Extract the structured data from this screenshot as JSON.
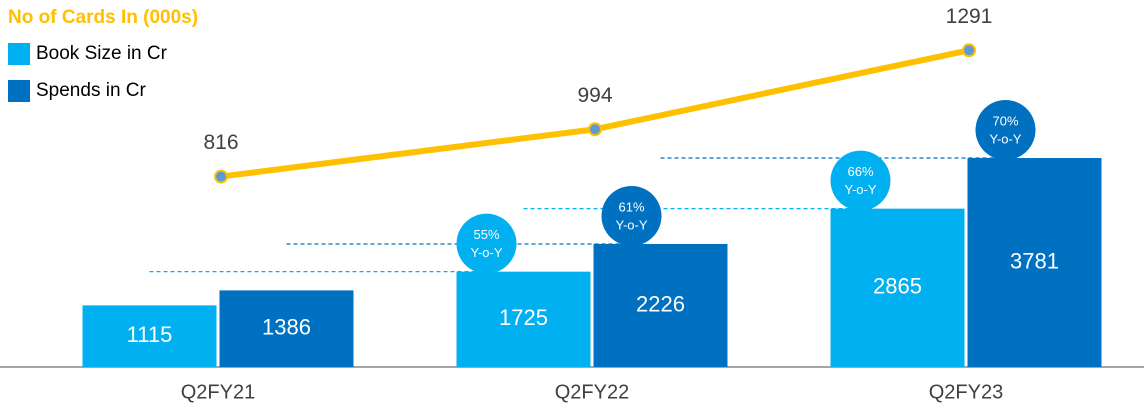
{
  "chart_data": {
    "type": "bar",
    "categories": [
      "Q2FY21",
      "Q2FY22",
      "Q2FY23"
    ],
    "ylim": [
      0,
      6640
    ],
    "y2lim": [
      100,
      1480
    ],
    "series": [
      {
        "name": "Book Size in Cr",
        "color": "#00b0f0",
        "values": [
          1115,
          1725,
          2865
        ],
        "growth_labels": [
          null,
          "55%",
          "66%"
        ]
      },
      {
        "name": "Spends in Cr",
        "color": "#0070c0",
        "values": [
          1386,
          2226,
          3781
        ],
        "growth_labels": [
          null,
          "61%",
          "70%"
        ]
      },
      {
        "name": "No of Cards In (000s)",
        "type": "line",
        "axis": "y2",
        "color": "#ffc000",
        "marker_color": "#5b9bd5",
        "values": [
          816,
          994,
          1291
        ]
      }
    ],
    "growth_note": "Y-o-Y"
  }
}
